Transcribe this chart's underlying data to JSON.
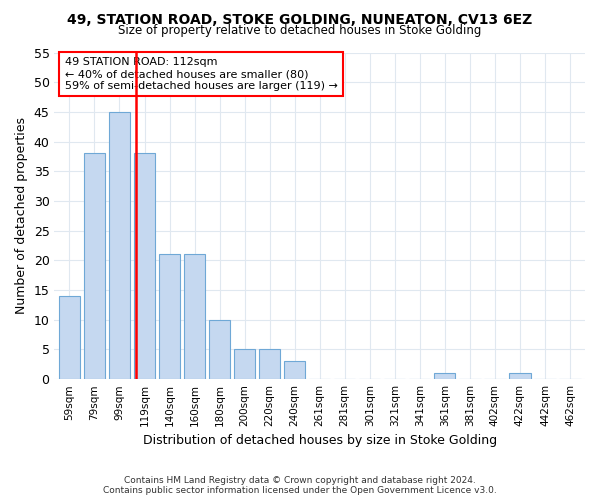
{
  "title": "49, STATION ROAD, STOKE GOLDING, NUNEATON, CV13 6EZ",
  "subtitle": "Size of property relative to detached houses in Stoke Golding",
  "xlabel": "Distribution of detached houses by size in Stoke Golding",
  "ylabel": "Number of detached properties",
  "bar_labels": [
    "59sqm",
    "79sqm",
    "99sqm",
    "119sqm",
    "140sqm",
    "160sqm",
    "180sqm",
    "200sqm",
    "220sqm",
    "240sqm",
    "261sqm",
    "281sqm",
    "301sqm",
    "321sqm",
    "341sqm",
    "361sqm",
    "381sqm",
    "402sqm",
    "422sqm",
    "442sqm",
    "462sqm"
  ],
  "bar_values": [
    14,
    38,
    45,
    38,
    21,
    21,
    10,
    5,
    5,
    3,
    0,
    0,
    0,
    0,
    0,
    1,
    0,
    0,
    1,
    0,
    0
  ],
  "bar_color": "#c5d8f0",
  "bar_edge_color": "#6fa8d6",
  "annotation_text_line1": "49 STATION ROAD: 112sqm",
  "annotation_text_line2": "← 40% of detached houses are smaller (80)",
  "annotation_text_line3": "59% of semi-detached houses are larger (119) →",
  "annotation_box_color": "red",
  "vline_color": "red",
  "ylim": [
    0,
    55
  ],
  "yticks": [
    0,
    5,
    10,
    15,
    20,
    25,
    30,
    35,
    40,
    45,
    50,
    55
  ],
  "footer_line1": "Contains HM Land Registry data © Crown copyright and database right 2024.",
  "footer_line2": "Contains public sector information licensed under the Open Government Licence v3.0.",
  "bg_color": "#ffffff",
  "plot_bg_color": "#ffffff",
  "grid_color": "#e0e8f0"
}
